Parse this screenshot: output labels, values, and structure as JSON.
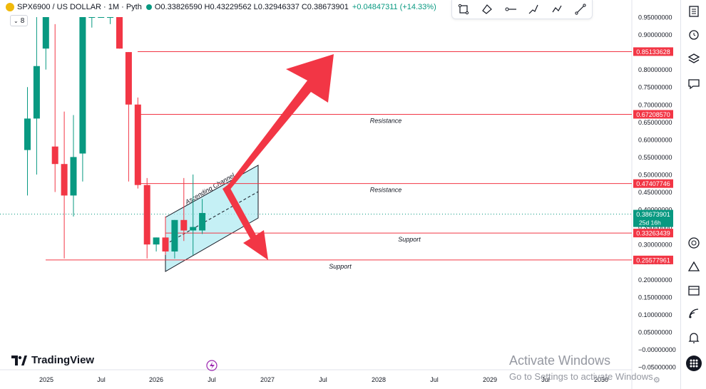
{
  "header": {
    "symbol": "SPX6900 / US DOLLAR · 1M · Pyth",
    "open": "O0.33826590",
    "high": "H0.43229562",
    "low": "L0.32946337",
    "close": "C0.38673901",
    "change": "+0.04847311 (+14.33%)",
    "indicator_count": "8"
  },
  "branding": {
    "logo_text": "TradingView"
  },
  "watermark": {
    "line1": "Activate Windows",
    "line2": "Go to Settings to activate Windows."
  },
  "toolbar_icons": [
    "rectangle-icon",
    "polyline-icon",
    "horizontal-ray-icon",
    "path-icon",
    "trend-angle-icon",
    "trend-line-icon"
  ],
  "rail_icons": [
    "watchlist-icon",
    "alarm-icon",
    "layers-icon",
    "chat-icon",
    "compass-icon",
    "triangle-icon",
    "calendar-icon",
    "broadcast-icon",
    "bell-icon",
    "apps-icon"
  ],
  "colors": {
    "up": "#089981",
    "down": "#f23645",
    "level": "#f23645",
    "channel_fill": "#b2ebf2",
    "arrow": "#f23645"
  },
  "chart_data": {
    "type": "candlestick",
    "y_axis": {
      "min": -0.05,
      "max": 0.95,
      "ticks": [
        "0.95000000",
        "0.90000000",
        "0.85000000",
        "0.80000000",
        "0.75000000",
        "0.70000000",
        "0.65000000",
        "0.60000000",
        "0.55000000",
        "0.50000000",
        "0.45000000",
        "0.40000000",
        "0.35000000",
        "0.30000000",
        "0.25000000",
        "0.20000000",
        "0.15000000",
        "0.10000000",
        "0.05000000",
        "−0.00000000",
        "−0.05000000"
      ]
    },
    "x_axis": {
      "labels": [
        "2025",
        "Jul",
        "2026",
        "Jul",
        "2027",
        "Jul",
        "2028",
        "Jul",
        "2029",
        "Jul",
        "2030"
      ]
    },
    "candles": [
      {
        "o": 0.57,
        "h": 0.75,
        "l": 0.44,
        "c": 0.66
      },
      {
        "o": 0.66,
        "h": 0.95,
        "l": 0.5,
        "c": 0.81
      },
      {
        "o": 0.86,
        "h": 0.95,
        "l": 0.8,
        "c": 0.95
      },
      {
        "o": 0.58,
        "h": 0.93,
        "l": 0.45,
        "c": 0.53
      },
      {
        "o": 0.53,
        "h": 0.68,
        "l": 0.26,
        "c": 0.44
      },
      {
        "o": 0.44,
        "h": 0.67,
        "l": 0.38,
        "c": 0.55
      },
      {
        "o": 0.56,
        "h": 0.95,
        "l": 0.48,
        "c": 0.95
      },
      {
        "o": 0.95,
        "h": 0.95,
        "l": 0.92,
        "c": 0.95
      },
      {
        "o": 0.95,
        "h": 0.95,
        "l": 0.95,
        "c": 0.95
      },
      {
        "o": 0.95,
        "h": 0.95,
        "l": 0.93,
        "c": 0.95
      },
      {
        "o": 0.95,
        "h": 0.95,
        "l": 0.86,
        "c": 0.86
      },
      {
        "o": 0.85,
        "h": 0.85,
        "l": 0.48,
        "c": 0.7
      },
      {
        "o": 0.7,
        "h": 0.72,
        "l": 0.46,
        "c": 0.47
      },
      {
        "o": 0.47,
        "h": 0.49,
        "l": 0.26,
        "c": 0.3
      },
      {
        "o": 0.3,
        "h": 0.32,
        "l": 0.28,
        "c": 0.32
      },
      {
        "o": 0.32,
        "h": 0.38,
        "l": 0.27,
        "c": 0.28
      },
      {
        "o": 0.28,
        "h": 0.37,
        "l": 0.26,
        "c": 0.37
      },
      {
        "o": 0.37,
        "h": 0.49,
        "l": 0.31,
        "c": 0.34
      },
      {
        "o": 0.34,
        "h": 0.5,
        "l": 0.27,
        "c": 0.35
      },
      {
        "o": 0.34,
        "h": 0.43,
        "l": 0.33,
        "c": 0.39
      }
    ],
    "levels": [
      {
        "value": 0.85133628,
        "label": "0.85133628",
        "text": ""
      },
      {
        "value": 0.6720857,
        "label": "0.67208570",
        "text": "Resistance"
      },
      {
        "value": 0.47407746,
        "label": "0.47407746",
        "text": "Resistance"
      },
      {
        "value": 0.33263439,
        "label": "0.33263439",
        "text": "Support"
      },
      {
        "value": 0.25577961,
        "label": "0.25577961",
        "text": "Support"
      }
    ],
    "current_price": {
      "value": 0.38673901,
      "label": "0.38673901",
      "countdown": "25d 16h"
    },
    "channel_label": "Ascending Channel"
  }
}
